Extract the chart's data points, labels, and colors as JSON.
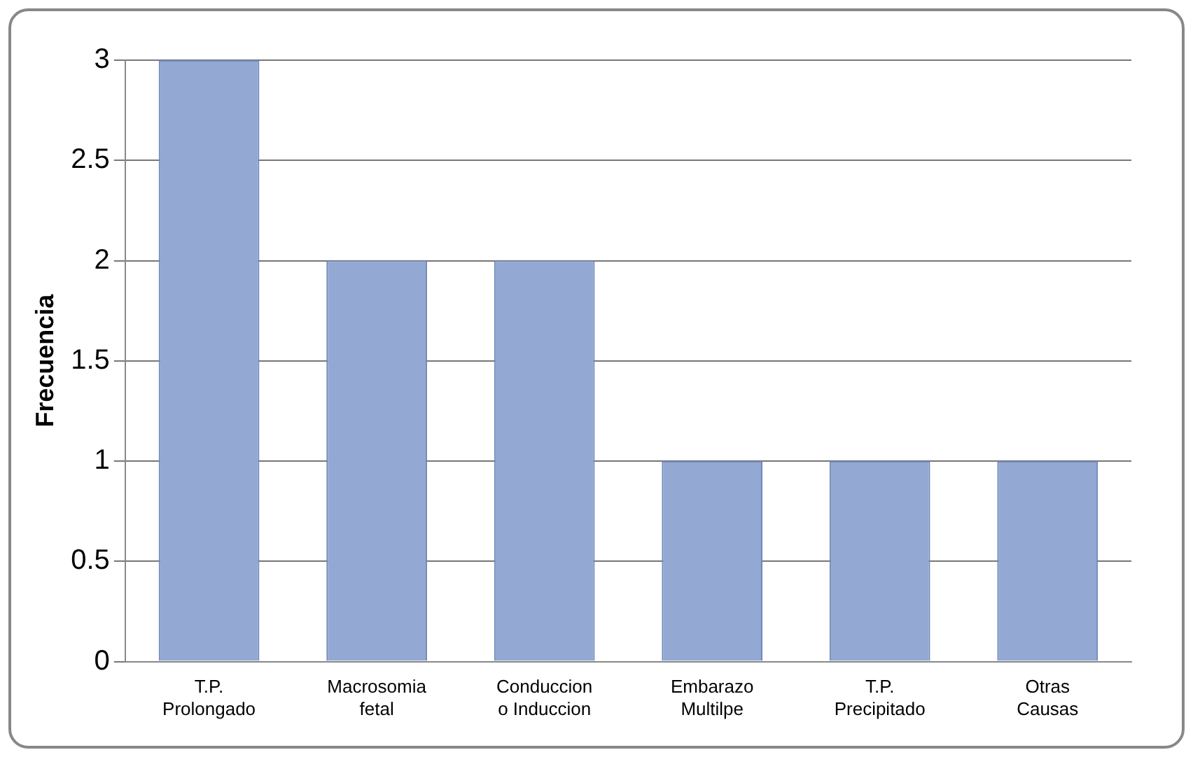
{
  "chart_data": {
    "type": "bar",
    "ylabel": "Frecuencia",
    "categories": [
      "T.P. Prolongado",
      "Macrosomia fetal",
      "Conduccion o Induccion",
      "Embarazo Multilpe",
      "T.P. Precipitado",
      "Otras Causas"
    ],
    "values": [
      3,
      2,
      2,
      1,
      1,
      1
    ],
    "color": "#93a9d4",
    "ylim": [
      0,
      3
    ],
    "yticks": [
      0,
      0.5,
      1,
      1.5,
      2,
      2.5,
      3
    ],
    "grid": "y"
  }
}
